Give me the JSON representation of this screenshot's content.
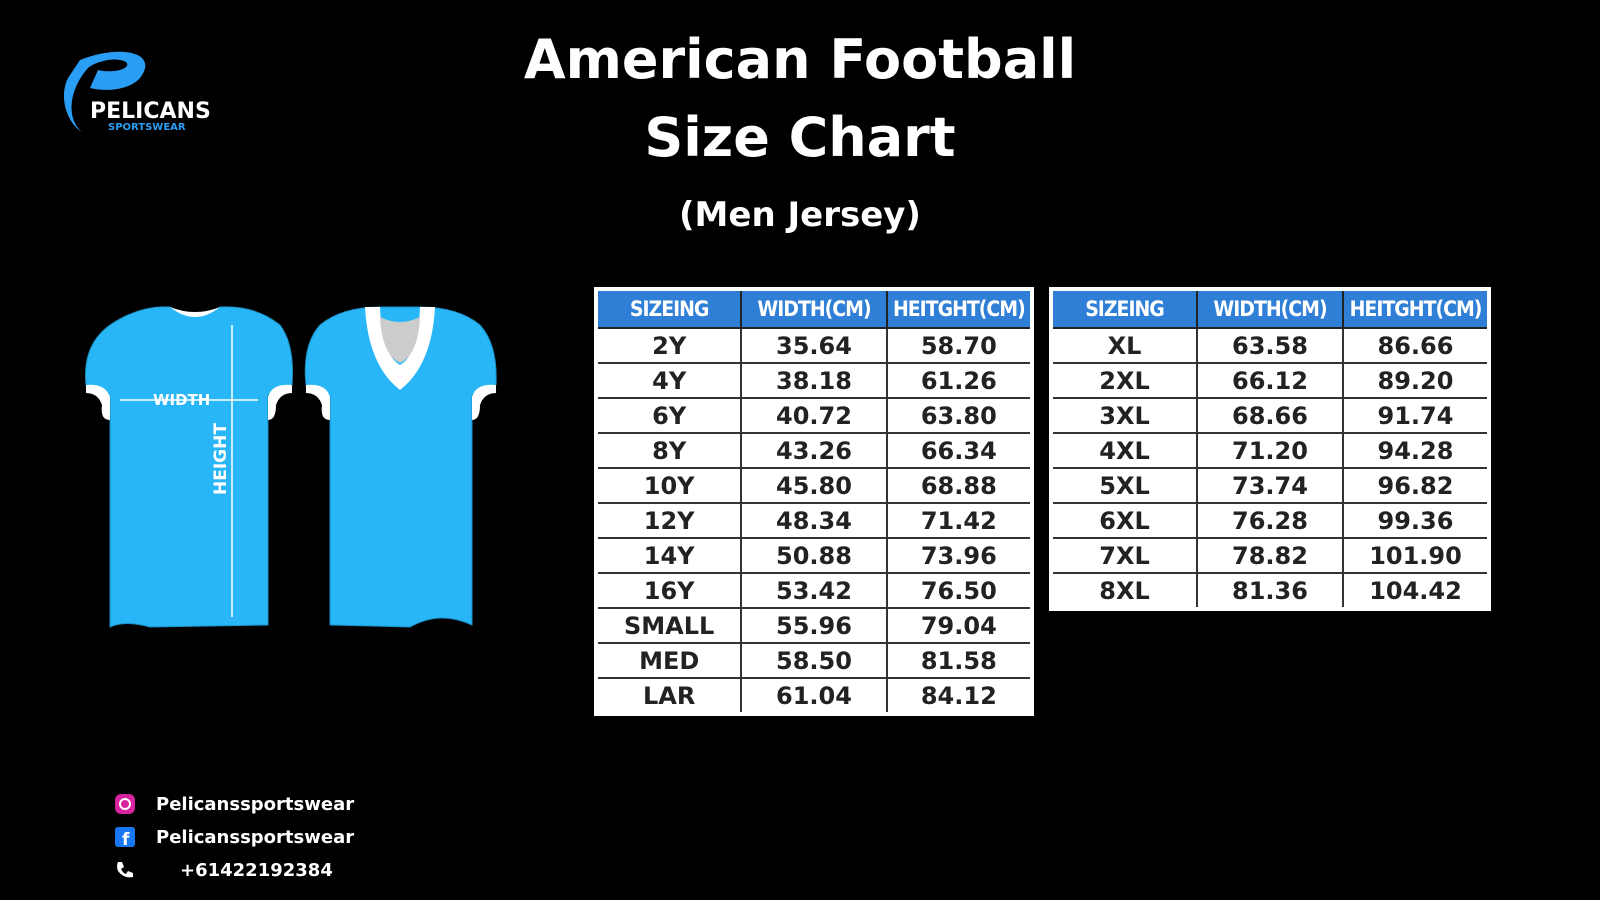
{
  "logo": {
    "name": "PELICANS",
    "tagline": "SPORTSWEAR"
  },
  "header": {
    "title_line1": "American Football",
    "title_line2": "Size Chart",
    "subtitle": "(Men Jersey)"
  },
  "diagram": {
    "width_label": "WIDTH",
    "height_label": "HEIGHT"
  },
  "tables": [
    {
      "columns": [
        "SIZEING",
        "WIDTH(CM)",
        "HEITGHT(CM)"
      ],
      "rows": [
        [
          "2Y",
          "35.64",
          "58.70"
        ],
        [
          "4Y",
          "38.18",
          "61.26"
        ],
        [
          "6Y",
          "40.72",
          "63.80"
        ],
        [
          "8Y",
          "43.26",
          "66.34"
        ],
        [
          "10Y",
          "45.80",
          "68.88"
        ],
        [
          "12Y",
          "48.34",
          "71.42"
        ],
        [
          "14Y",
          "50.88",
          "73.96"
        ],
        [
          "16Y",
          "53.42",
          "76.50"
        ],
        [
          "SMALL",
          "55.96",
          "79.04"
        ],
        [
          "MED",
          "58.50",
          "81.58"
        ],
        [
          "LAR",
          "61.04",
          "84.12"
        ]
      ]
    },
    {
      "columns": [
        "SIZEING",
        "WIDTH(CM)",
        "HEITGHT(CM)"
      ],
      "rows": [
        [
          "XL",
          "63.58",
          "86.66"
        ],
        [
          "2XL",
          "66.12",
          "89.20"
        ],
        [
          "3XL",
          "68.66",
          "91.74"
        ],
        [
          "4XL",
          "71.20",
          "94.28"
        ],
        [
          "5XL",
          "73.74",
          "96.82"
        ],
        [
          "6XL",
          "76.28",
          "99.36"
        ],
        [
          "7XL",
          "78.82",
          "101.90"
        ],
        [
          "8XL",
          "81.36",
          "104.42"
        ]
      ]
    }
  ],
  "contacts": {
    "instagram": "Pelicanssportswear",
    "facebook": "Pelicanssportswear",
    "phone": "+61422192384"
  }
}
